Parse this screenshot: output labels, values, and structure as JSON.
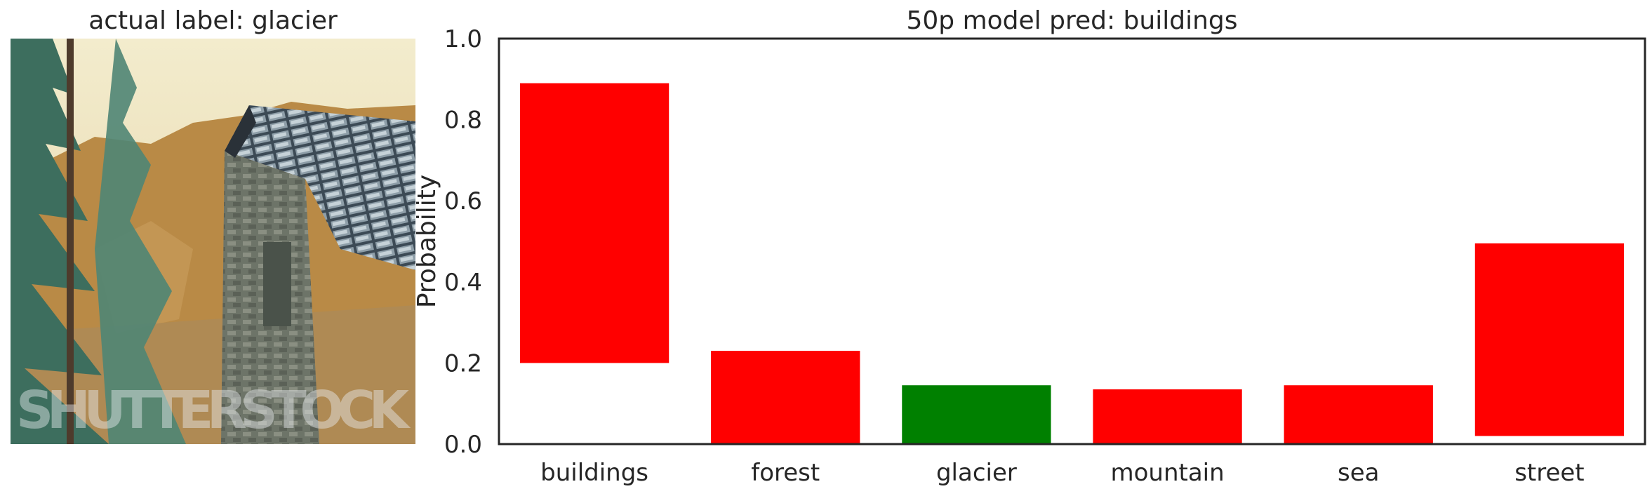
{
  "image_panel": {
    "title": "actual label: glacier",
    "watermark": "SHUTTERSTOCK"
  },
  "chart_data": {
    "type": "bar",
    "title": "50p model pred: buildings",
    "xlabel": "",
    "ylabel": "Probability",
    "ylim": [
      0,
      1.0
    ],
    "yticks": [
      "0.0",
      "0.2",
      "0.4",
      "0.6",
      "0.8",
      "1.0"
    ],
    "categories": [
      "buildings",
      "forest",
      "glacier",
      "mountain",
      "sea",
      "street"
    ],
    "bars": [
      {
        "bottom": 0.2,
        "top": 0.89,
        "color": "#ff0000"
      },
      {
        "bottom": 0.0,
        "top": 0.23,
        "color": "#ff0000"
      },
      {
        "bottom": 0.0,
        "top": 0.145,
        "color": "#008000"
      },
      {
        "bottom": 0.0,
        "top": 0.135,
        "color": "#ff0000"
      },
      {
        "bottom": 0.0,
        "top": 0.145,
        "color": "#ff0000"
      },
      {
        "bottom": 0.02,
        "top": 0.495,
        "color": "#ff0000"
      }
    ],
    "grid": false
  }
}
